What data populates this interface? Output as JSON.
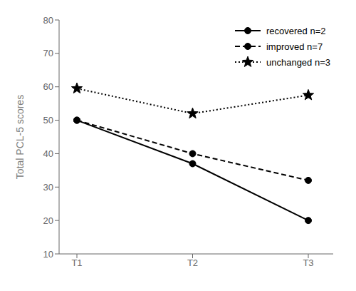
{
  "chart_data": {
    "type": "line",
    "categories": [
      "T1",
      "T2",
      "T3"
    ],
    "y_label": "Total PCL-5 scores",
    "ylim": [
      10,
      80
    ],
    "yticks": [
      10,
      20,
      30,
      40,
      50,
      60,
      70,
      80
    ],
    "grid": false,
    "legend": "upper right",
    "series": [
      {
        "name": "recovered n=2",
        "color": "#000000",
        "values": [
          50,
          37,
          20
        ],
        "marker": "circle",
        "line_style": "solid"
      },
      {
        "name": "improved n=7",
        "color": "#000000",
        "values": [
          50,
          40,
          32
        ],
        "marker": "circle",
        "line_style": "dashed"
      },
      {
        "name": "unchanged n=3",
        "color": "#000000",
        "values": [
          59.5,
          52,
          57.5
        ],
        "marker": "star",
        "line_style": "dotted"
      }
    ]
  }
}
